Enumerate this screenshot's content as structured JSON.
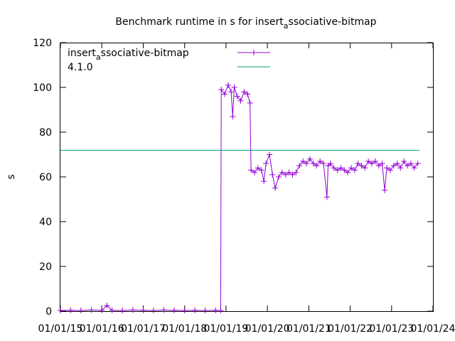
{
  "chart_data": {
    "type": "line",
    "title_main": "Benchmark runtime in s for insert",
    "title_sub": "a",
    "title_rest": "ssociative-bitmap",
    "ylabel": "s",
    "xlabel": "",
    "ylim": [
      0,
      120
    ],
    "y_ticks": [
      "0",
      "20",
      "40",
      "60",
      "80",
      "100",
      "120"
    ],
    "x_ticks": [
      "01/01/15",
      "01/01/16",
      "01/01/17",
      "01/01/18",
      "01/01/19",
      "01/01/20",
      "01/01/21",
      "01/01/22",
      "01/01/23",
      "01/01/24"
    ],
    "xlim": [
      "2015-01-01",
      "2024-01-01"
    ],
    "grid": false,
    "legend_position": "top-left",
    "series": [
      {
        "name_main": "insert",
        "name_sub": "a",
        "name_rest": "ssociative-bitmap",
        "color": "#9400d3",
        "marker": "plus",
        "points": [
          [
            "2015-01-01",
            0.3
          ],
          [
            "2015-04-01",
            0.4
          ],
          [
            "2015-07-01",
            0.3
          ],
          [
            "2015-10-01",
            0.5
          ],
          [
            "2016-01-01",
            0.4
          ],
          [
            "2016-02-15",
            2.5
          ],
          [
            "2016-04-01",
            0.4
          ],
          [
            "2016-07-01",
            0.3
          ],
          [
            "2016-10-01",
            0.5
          ],
          [
            "2017-01-01",
            0.4
          ],
          [
            "2017-04-01",
            0.3
          ],
          [
            "2017-07-01",
            0.5
          ],
          [
            "2017-10-01",
            0.4
          ],
          [
            "2018-01-01",
            0.3
          ],
          [
            "2018-04-01",
            0.4
          ],
          [
            "2018-07-01",
            0.3
          ],
          [
            "2018-10-01",
            0.4
          ],
          [
            "2018-11-15",
            0.3
          ],
          [
            "2018-11-20",
            99
          ],
          [
            "2018-12-20",
            97
          ],
          [
            "2019-01-20",
            101
          ],
          [
            "2019-02-15",
            98
          ],
          [
            "2019-03-01",
            87
          ],
          [
            "2019-03-15",
            100
          ],
          [
            "2019-04-10",
            96
          ],
          [
            "2019-05-10",
            94
          ],
          [
            "2019-06-10",
            98
          ],
          [
            "2019-07-10",
            97
          ],
          [
            "2019-08-01",
            93
          ],
          [
            "2019-08-10",
            63
          ],
          [
            "2019-09-10",
            62
          ],
          [
            "2019-10-10",
            64
          ],
          [
            "2019-11-10",
            63
          ],
          [
            "2019-12-01",
            58
          ],
          [
            "2019-12-20",
            66
          ],
          [
            "2020-01-20",
            70
          ],
          [
            "2020-02-15",
            61
          ],
          [
            "2020-03-10",
            55
          ],
          [
            "2020-04-10",
            60
          ],
          [
            "2020-05-10",
            62
          ],
          [
            "2020-06-10",
            61
          ],
          [
            "2020-07-10",
            62
          ],
          [
            "2020-08-10",
            61
          ],
          [
            "2020-09-10",
            62
          ],
          [
            "2020-10-10",
            65
          ],
          [
            "2020-11-10",
            67
          ],
          [
            "2020-12-10",
            66
          ],
          [
            "2021-01-10",
            68
          ],
          [
            "2021-02-10",
            66
          ],
          [
            "2021-03-10",
            65
          ],
          [
            "2021-04-10",
            67
          ],
          [
            "2021-05-10",
            66
          ],
          [
            "2021-06-10",
            51
          ],
          [
            "2021-06-20",
            65
          ],
          [
            "2021-07-10",
            66
          ],
          [
            "2021-08-10",
            64
          ],
          [
            "2021-09-10",
            63
          ],
          [
            "2021-10-10",
            64
          ],
          [
            "2021-11-10",
            63
          ],
          [
            "2021-12-10",
            62
          ],
          [
            "2022-01-10",
            64
          ],
          [
            "2022-02-10",
            63
          ],
          [
            "2022-03-10",
            66
          ],
          [
            "2022-04-10",
            65
          ],
          [
            "2022-05-10",
            64
          ],
          [
            "2022-06-10",
            67
          ],
          [
            "2022-07-10",
            66
          ],
          [
            "2022-08-10",
            67
          ],
          [
            "2022-09-10",
            65
          ],
          [
            "2022-10-10",
            66
          ],
          [
            "2022-11-01",
            54
          ],
          [
            "2022-11-20",
            64
          ],
          [
            "2022-12-20",
            63
          ],
          [
            "2023-01-20",
            65
          ],
          [
            "2023-02-20",
            66
          ],
          [
            "2023-03-20",
            64
          ],
          [
            "2023-04-20",
            67
          ],
          [
            "2023-05-20",
            65
          ],
          [
            "2023-06-20",
            66
          ],
          [
            "2023-07-20",
            64
          ],
          [
            "2023-08-20",
            66
          ]
        ]
      },
      {
        "name_main": "4.1.0",
        "name_sub": "",
        "name_rest": "",
        "color": "#009e73",
        "marker": "none",
        "points": [
          [
            "2015-01-01",
            71.9
          ],
          [
            "2023-09-01",
            71.9
          ]
        ]
      }
    ]
  }
}
